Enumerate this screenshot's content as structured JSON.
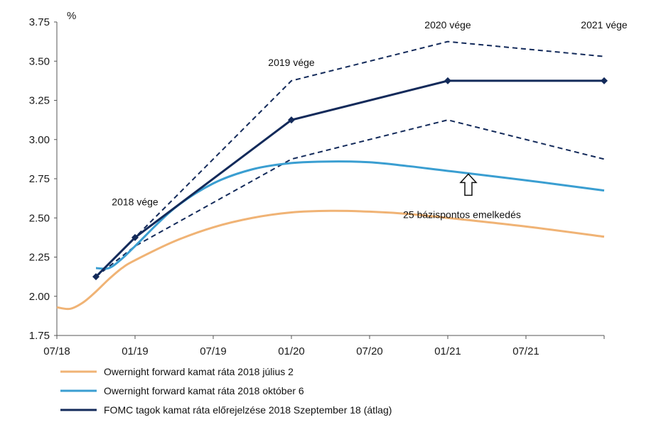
{
  "chart_data": {
    "type": "line",
    "ylabel": "%",
    "ylim": [
      1.75,
      3.75
    ],
    "y_ticks": [
      "1.75",
      "2.00",
      "2.25",
      "2.50",
      "2.75",
      "3.00",
      "3.25",
      "3.50",
      "3.75"
    ],
    "xlim": [
      "07/18",
      "01/22"
    ],
    "x_ticks": [
      "07/18",
      "01/19",
      "07/19",
      "01/20",
      "07/20",
      "01/21",
      "07/21"
    ],
    "grid": false,
    "legend_position": "bottom",
    "series": [
      {
        "name": "Owernight forward kamat ráta 2018 július 2",
        "color": "#f0b375",
        "style": "solid",
        "points": [
          [
            "07/18",
            1.93
          ],
          [
            "08/18",
            1.92
          ],
          [
            "09/18",
            1.96
          ],
          [
            "10/18",
            2.03
          ],
          [
            "11/18",
            2.11
          ],
          [
            "12/18",
            2.18
          ],
          [
            "01/19",
            2.23
          ],
          [
            "04/19",
            2.35
          ],
          [
            "07/19",
            2.44
          ],
          [
            "10/19",
            2.5
          ],
          [
            "01/20",
            2.535
          ],
          [
            "04/20",
            2.545
          ],
          [
            "07/20",
            2.54
          ],
          [
            "10/20",
            2.525
          ],
          [
            "01/21",
            2.5
          ],
          [
            "07/21",
            2.445
          ],
          [
            "01/22",
            2.38
          ]
        ]
      },
      {
        "name": "Owernight forward kamat ráta 2018 október 6",
        "color": "#3a9ed1",
        "style": "solid",
        "points": [
          [
            "10/18",
            2.18
          ],
          [
            "11/18",
            2.18
          ],
          [
            "12/18",
            2.24
          ],
          [
            "01/19",
            2.32
          ],
          [
            "04/19",
            2.56
          ],
          [
            "07/19",
            2.72
          ],
          [
            "10/19",
            2.81
          ],
          [
            "01/20",
            2.85
          ],
          [
            "04/20",
            2.86
          ],
          [
            "07/20",
            2.855
          ],
          [
            "10/20",
            2.83
          ],
          [
            "01/21",
            2.8
          ],
          [
            "07/21",
            2.74
          ],
          [
            "01/22",
            2.675
          ]
        ]
      },
      {
        "name": "FOMC tagok kamat ráta előrejelzése 2018 Szeptember 18 (átlag)",
        "color": "#132a5a",
        "style": "solid-markers",
        "points": [
          [
            "10/18",
            2.125
          ],
          [
            "01/19",
            2.375
          ],
          [
            "01/20",
            3.125
          ],
          [
            "01/21",
            3.375
          ],
          [
            "01/22",
            3.375
          ]
        ]
      },
      {
        "name": "",
        "color": "#132a5a",
        "style": "dashed",
        "points": [
          [
            "10/18",
            2.125
          ],
          [
            "01/19",
            2.375
          ],
          [
            "01/20",
            3.375
          ],
          [
            "01/21",
            3.625
          ],
          [
            "01/22",
            3.53
          ]
        ]
      },
      {
        "name": "",
        "color": "#132a5a",
        "style": "dashed",
        "points": [
          [
            "10/18",
            2.125
          ],
          [
            "01/19",
            2.32
          ],
          [
            "01/20",
            2.875
          ],
          [
            "01/21",
            3.125
          ],
          [
            "01/22",
            2.875
          ]
        ]
      }
    ],
    "annotations": [
      {
        "text": "2018 vége",
        "x": "01/19",
        "y": 2.58
      },
      {
        "text": "2019 vége",
        "x": "01/20",
        "y": 3.47
      },
      {
        "text": "2020 vége",
        "x": "01/21",
        "y": 3.71
      },
      {
        "text": "2021 vége",
        "x": "01/22",
        "y": 3.71
      },
      {
        "text": "25 bázispontos emelkedés",
        "x": "01/21",
        "y": 2.5
      }
    ]
  }
}
